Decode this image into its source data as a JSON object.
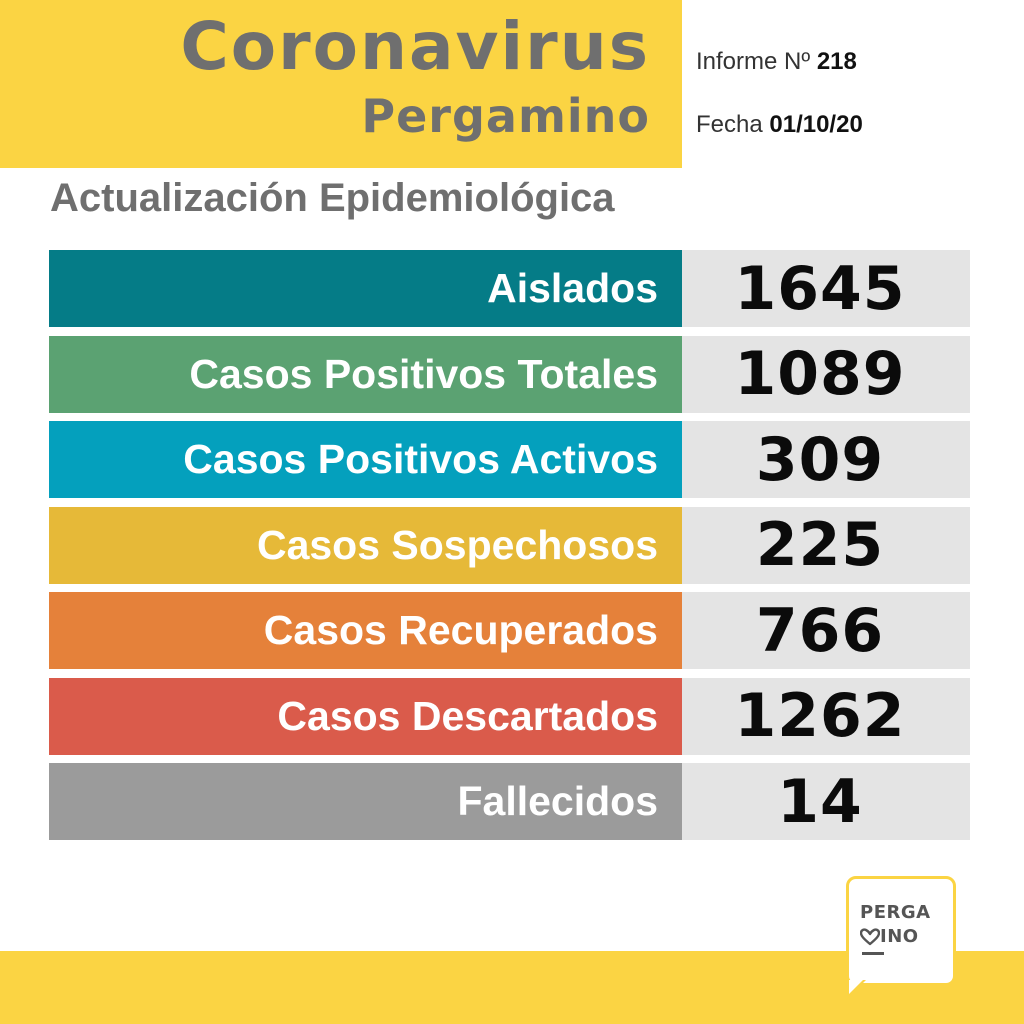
{
  "header": {
    "title": "Coronavirus",
    "city": "Pergamino",
    "informe_label": "Informe Nº",
    "informe_number": "218",
    "fecha_label": "Fecha",
    "fecha_value": "01/10/20"
  },
  "subtitle": "Actualización Epidemiológica",
  "stats": [
    {
      "label": "Aislados",
      "value": "1645",
      "color": "#057c87"
    },
    {
      "label": "Casos Positivos Totales",
      "value": "1089",
      "color": "#5ba272"
    },
    {
      "label": "Casos Positivos Activos",
      "value": "309",
      "color": "#04a0bd"
    },
    {
      "label": "Casos Sospechosos",
      "value": "225",
      "color": "#e6b938"
    },
    {
      "label": "Casos Recuperados",
      "value": "766",
      "color": "#e5813a"
    },
    {
      "label": "Casos Descartados",
      "value": "1262",
      "color": "#da5b4b"
    },
    {
      "label": "Fallecidos",
      "value": "14",
      "color": "#9b9b9b"
    }
  ],
  "logo": {
    "line1": "PERGA",
    "line2": "INO",
    "icon": "heart-m-icon"
  },
  "colors": {
    "brand_yellow": "#fbd443",
    "title_gray": "#6f6f6f",
    "value_bg": "#e4e4e4"
  }
}
